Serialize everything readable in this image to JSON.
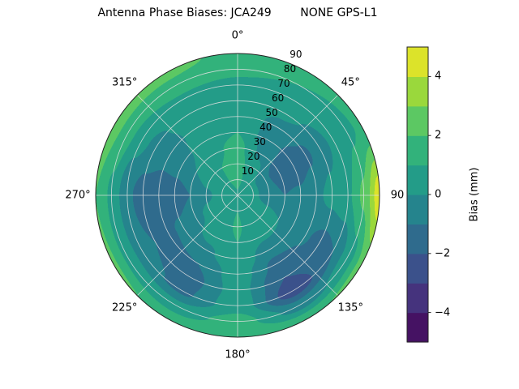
{
  "title": "Antenna Phase Biases: JCA249        NONE GPS-L1",
  "polar": {
    "azimuth_labels": [
      {
        "angle_deg": 0,
        "text": "0°"
      },
      {
        "angle_deg": 45,
        "text": "45°"
      },
      {
        "angle_deg": 90,
        "text": "90"
      },
      {
        "angle_deg": 135,
        "text": "135°"
      },
      {
        "angle_deg": 180,
        "text": "180°"
      },
      {
        "angle_deg": 225,
        "text": "225°"
      },
      {
        "angle_deg": 270,
        "text": "270°"
      },
      {
        "angle_deg": 315,
        "text": "315°"
      }
    ],
    "radial_tick_labels": [
      {
        "value": 10,
        "text": "10"
      },
      {
        "value": 20,
        "text": "20"
      },
      {
        "value": 30,
        "text": "30"
      },
      {
        "value": 40,
        "text": "40"
      },
      {
        "value": 50,
        "text": "50"
      },
      {
        "value": 60,
        "text": "60"
      },
      {
        "value": 70,
        "text": "70"
      },
      {
        "value": 80,
        "text": "80"
      },
      {
        "value": 90,
        "text": "90"
      }
    ],
    "radial_label_angle_deg": 22.5,
    "grid_color": "#e0e0e0"
  },
  "colorbar": {
    "label": "Bias (mm)",
    "ticks": [
      {
        "value": -4,
        "text": "−4"
      },
      {
        "value": -2,
        "text": "−2"
      },
      {
        "value": 0,
        "text": "0"
      },
      {
        "value": 2,
        "text": "2"
      },
      {
        "value": 4,
        "text": "4"
      }
    ],
    "vmin": -5,
    "vmax": 5,
    "n_segments": 10,
    "colormap": "viridis"
  },
  "chart_data": {
    "type": "heatmap",
    "projection": "polar",
    "title": "Antenna Phase Biases: JCA249        NONE GPS-L1",
    "value_label": "Bias (mm)",
    "theta_zero": "north",
    "theta_direction": "clockwise",
    "colormap": "viridis",
    "levels": [
      -5,
      -4,
      -3,
      -2,
      -1,
      0,
      1,
      2,
      3,
      4,
      5
    ],
    "azimuth_deg": [
      0,
      30,
      60,
      90,
      120,
      150,
      180,
      210,
      240,
      270,
      300,
      330
    ],
    "zenith_angle_deg": [
      0,
      10,
      20,
      30,
      40,
      50,
      60,
      70,
      80,
      90
    ],
    "bias_mm": [
      [
        0.9,
        0.9,
        0.9,
        0.9,
        0.9,
        0.9,
        0.9,
        0.9,
        0.9,
        0.9,
        0.9,
        0.9
      ],
      [
        1.2,
        0.8,
        0.3,
        0.2,
        0.4,
        0.6,
        1.0,
        0.8,
        0.6,
        0.4,
        0.6,
        1.0
      ],
      [
        1.4,
        0.4,
        -0.8,
        -0.5,
        0.2,
        0.4,
        1.1,
        0.6,
        0.2,
        -0.2,
        0.3,
        1.0
      ],
      [
        1.3,
        -0.2,
        -1.6,
        -1.0,
        0.0,
        0.2,
        1.0,
        0.3,
        -0.2,
        -1.0,
        0.0,
        0.8
      ],
      [
        1.0,
        -0.5,
        -1.7,
        -0.8,
        -0.4,
        -0.6,
        0.8,
        -0.2,
        -0.8,
        -1.7,
        -0.4,
        0.6
      ],
      [
        0.8,
        -0.3,
        -1.2,
        -0.2,
        -0.9,
        -1.3,
        0.5,
        -1.0,
        -1.2,
        -1.8,
        -0.6,
        0.4
      ],
      [
        0.7,
        0.2,
        -0.4,
        0.3,
        -1.3,
        -2.0,
        0.4,
        -1.4,
        -1.0,
        -1.5,
        -0.3,
        0.5
      ],
      [
        0.8,
        0.6,
        0.2,
        0.8,
        -1.0,
        -2.6,
        0.6,
        -1.2,
        -0.6,
        -0.8,
        0.3,
        0.8
      ],
      [
        1.2,
        1.0,
        0.8,
        2.2,
        0.5,
        -0.5,
        1.4,
        0.4,
        0.8,
        0.8,
        1.5,
        1.6
      ],
      [
        1.6,
        1.4,
        1.2,
        4.6,
        2.4,
        1.8,
        2.0,
        1.8,
        2.2,
        2.0,
        2.6,
        2.4
      ]
    ]
  }
}
